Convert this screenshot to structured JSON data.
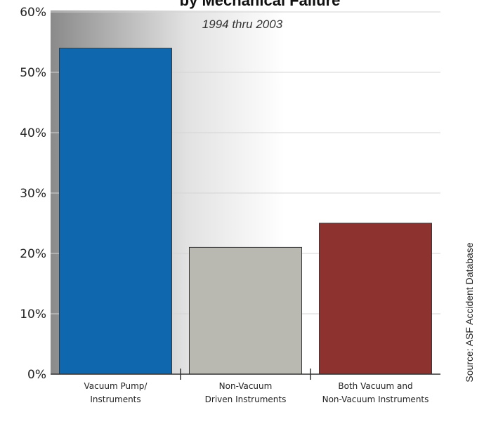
{
  "chart_data": {
    "type": "bar",
    "title": "by Mechanical Failure",
    "subtitle": "1994 thru 2003",
    "source": "Source: ASF Accident Database",
    "categories": [
      [
        "Vacuum Pump/",
        "Instruments"
      ],
      [
        "Non-Vacuum",
        "Driven Instruments"
      ],
      [
        "Both Vacuum and",
        "Non-Vacuum Instruments"
      ]
    ],
    "values": [
      54,
      21,
      25
    ],
    "colors": [
      "#0f68ad",
      "#b9b8b1",
      "#8e3230"
    ],
    "ylim": [
      0,
      60
    ],
    "yticks": [
      "0%",
      "10%",
      "20%",
      "30%",
      "40%",
      "50%",
      "60%"
    ],
    "ytick_values": [
      0,
      10,
      20,
      30,
      40,
      50,
      60
    ],
    "grid": true
  }
}
